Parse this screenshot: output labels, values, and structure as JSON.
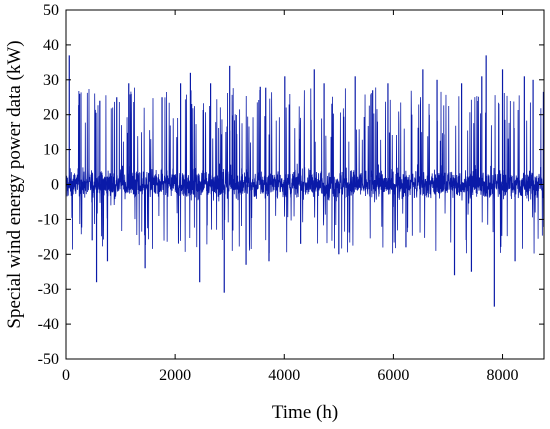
{
  "chart_data": {
    "type": "line",
    "title": "",
    "xlabel": "Time (h)",
    "ylabel": "Special wind energy power data (kW)",
    "xlim": [
      0,
      8760
    ],
    "ylim": [
      -50,
      50
    ],
    "x_ticks": [
      0,
      2000,
      4000,
      6000,
      8000
    ],
    "y_ticks": [
      -50,
      -40,
      -30,
      -20,
      -10,
      0,
      10,
      20,
      30,
      40,
      50
    ],
    "grid": false,
    "legend": "none",
    "series": [
      {
        "color": "#0a1aa8",
        "note_points": "dense high-frequency fluctuation around 0; representative extremes sampled",
        "x": [
          0,
          60,
          120,
          250,
          480,
          560,
          620,
          760,
          930,
          1150,
          1450,
          1760,
          2100,
          2280,
          2450,
          2650,
          2900,
          3000,
          3300,
          3560,
          3720,
          4010,
          4300,
          4550,
          4730,
          5000,
          5300,
          5620,
          5900,
          6230,
          6540,
          6800,
          7120,
          7250,
          7430,
          7620,
          7700,
          7850,
          8000,
          8230,
          8400,
          8560,
          8700
        ],
        "y": [
          0,
          37,
          -3,
          26,
          -16,
          -28,
          24,
          -22,
          25,
          29,
          -24,
          25,
          29,
          32,
          -28,
          29,
          -31,
          34,
          -23,
          28,
          -22,
          31,
          -17,
          33,
          29,
          -20,
          31,
          27,
          29,
          -18,
          33,
          30,
          -26,
          29,
          -25,
          31,
          37,
          -35,
          33,
          -22,
          31,
          30,
          5
        ]
      }
    ]
  }
}
